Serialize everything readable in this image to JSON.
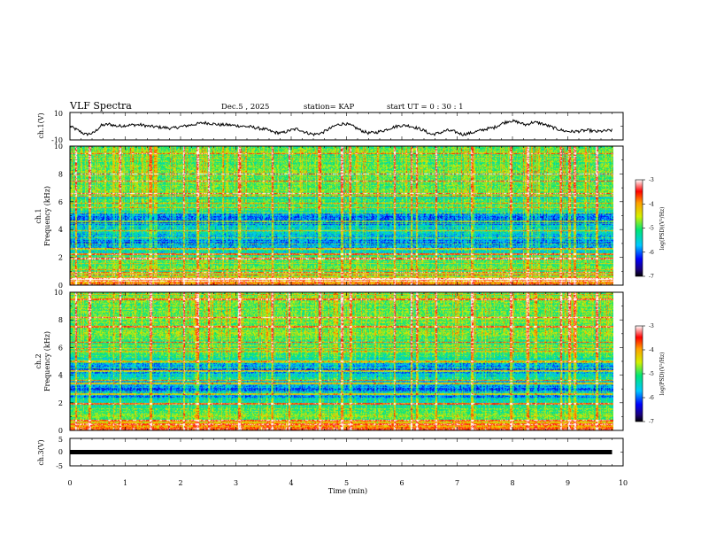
{
  "header": {
    "title": "VLF Spectra",
    "date": "Dec.5 , 2025",
    "station": "station= KAP",
    "start": "start UT = 0 : 30 : 1"
  },
  "chart_data": [
    {
      "type": "line",
      "name": "ch1-waveform",
      "ylabel": "ch.1(V)",
      "ylim": [
        -10,
        10
      ],
      "ytick_labels": [
        "10",
        "-10"
      ],
      "xlim": [
        0,
        10
      ],
      "data_xmax": 9.8,
      "values": [
        0.0,
        -3.0,
        -6.0,
        -5.0,
        0.5,
        1.5,
        0.0,
        0.5,
        1.0,
        1.0,
        0.0,
        -0.5,
        -1.0,
        -1.5,
        -0.5,
        0.5,
        1.5,
        2.5,
        2.0,
        1.0,
        1.0,
        0.5,
        0.0,
        -0.5,
        -1.5,
        -2.5,
        -4.5,
        -5.0,
        -3.0,
        -2.0,
        -4.5,
        -6.0,
        -5.0,
        -2.0,
        1.0,
        2.0,
        0.0,
        -3.0,
        -5.0,
        -4.5,
        -3.0,
        -1.0,
        0.5,
        0.5,
        -1.0,
        -3.0,
        -6.0,
        -5.0,
        -3.0,
        -4.0,
        -6.0,
        -5.0,
        -3.5,
        -2.0,
        -1.0,
        2.0,
        4.0,
        3.0,
        1.0,
        3.0,
        2.0,
        0.0,
        -2.0,
        -3.5,
        -4.0,
        -3.5,
        -3.0,
        -4.0,
        -3.5,
        -3.0
      ]
    },
    {
      "type": "heatmap",
      "name": "ch1-spectrogram",
      "ylabel": "ch.1",
      "ylabel2": "Frequency (kHz)",
      "xlim": [
        0,
        10
      ],
      "data_xmax": 9.8,
      "ylim": [
        0,
        10
      ],
      "ytick_labels": [
        "0",
        "2",
        "4",
        "6",
        "8",
        "10"
      ],
      "colorbar": {
        "label": "log(PSD)(V²/Hz)",
        "range": [
          -7,
          -3
        ],
        "tick_labels": [
          "-3",
          "-4",
          "-5",
          "-6",
          "-7"
        ]
      },
      "band_profile": [
        [
          0,
          -3.6
        ],
        [
          0.25,
          -4.0
        ],
        [
          0.6,
          -4.6
        ],
        [
          1.0,
          -4.9
        ],
        [
          1.5,
          -5.0
        ],
        [
          2.0,
          -4.9
        ],
        [
          2.3,
          -5.3
        ],
        [
          2.6,
          -5.7
        ],
        [
          3.0,
          -5.9
        ],
        [
          3.3,
          -5.9
        ],
        [
          3.5,
          -5.6
        ],
        [
          3.8,
          -5.3
        ],
        [
          4.0,
          -5.4
        ],
        [
          4.4,
          -5.9
        ],
        [
          4.9,
          -6.1
        ],
        [
          5.2,
          -5.7
        ],
        [
          5.6,
          -5.0
        ],
        [
          5.9,
          -5.1
        ],
        [
          6.3,
          -5.3
        ],
        [
          6.6,
          -4.8
        ],
        [
          7.0,
          -4.9
        ],
        [
          7.5,
          -4.9
        ],
        [
          8.0,
          -4.8
        ],
        [
          9.0,
          -4.9
        ],
        [
          10.0,
          -4.9
        ]
      ],
      "lines_khz": [
        0.4,
        0.7,
        0.9,
        1.9,
        2.2,
        2.6,
        3.4,
        3.9,
        4.6,
        6.4,
        6.6,
        7.5,
        8.0,
        9.5
      ],
      "burst_times_min": [
        0.1,
        0.35,
        0.9,
        1.45,
        2.05,
        2.3,
        2.5,
        3.05,
        3.65,
        3.95,
        4.5,
        4.9,
        5.05,
        5.85,
        6.15,
        6.25,
        6.6,
        7.25,
        7.95,
        8.25,
        8.85,
        9.0,
        9.1,
        9.5
      ]
    },
    {
      "type": "heatmap",
      "name": "ch2-spectrogram",
      "ylabel": "ch.2",
      "ylabel2": "Frequency (kHz)",
      "xlim": [
        0,
        10
      ],
      "data_xmax": 9.8,
      "ylim": [
        0,
        10
      ],
      "ytick_labels": [
        "0",
        "2",
        "4",
        "6",
        "8",
        "10"
      ],
      "colorbar": {
        "label": "log(PSD)(V²/Hz)",
        "range": [
          -7,
          -3
        ],
        "tick_labels": [
          "-3",
          "-4",
          "-5",
          "-6",
          "-7"
        ]
      },
      "band_profile": [
        [
          0,
          -3.6
        ],
        [
          0.25,
          -4.1
        ],
        [
          0.6,
          -4.7
        ],
        [
          1.0,
          -4.9
        ],
        [
          1.5,
          -5.0
        ],
        [
          2.0,
          -5.1
        ],
        [
          2.3,
          -5.6
        ],
        [
          2.6,
          -5.9
        ],
        [
          3.0,
          -6.0
        ],
        [
          3.3,
          -5.8
        ],
        [
          3.5,
          -5.4
        ],
        [
          3.8,
          -5.4
        ],
        [
          4.1,
          -5.6
        ],
        [
          4.4,
          -5.9
        ],
        [
          4.8,
          -5.8
        ],
        [
          5.1,
          -5.3
        ],
        [
          5.6,
          -5.0
        ],
        [
          6.0,
          -5.1
        ],
        [
          6.3,
          -5.0
        ],
        [
          6.6,
          -4.8
        ],
        [
          7.0,
          -4.9
        ],
        [
          7.5,
          -4.8
        ],
        [
          8.0,
          -4.8
        ],
        [
          9.0,
          -4.9
        ],
        [
          10.0,
          -4.9
        ]
      ],
      "lines_khz": [
        0.4,
        0.7,
        1.9,
        2.6,
        3.4,
        3.6,
        4.3,
        5.0,
        6.4,
        7.5,
        8.2,
        9.5
      ],
      "burst_times_min": [
        0.1,
        0.35,
        0.9,
        1.45,
        2.05,
        2.3,
        2.5,
        3.05,
        3.65,
        3.95,
        4.5,
        4.9,
        5.05,
        5.85,
        6.15,
        6.25,
        6.6,
        7.25,
        7.95,
        8.25,
        8.85,
        9.0,
        9.1,
        9.5
      ]
    },
    {
      "type": "line",
      "name": "ch3-trace",
      "ylabel": "ch.3(V)",
      "ylim": [
        -5,
        5
      ],
      "ytick_labels": [
        "5",
        "0",
        "-5"
      ],
      "xlim": [
        0,
        10
      ],
      "data_xmax": 9.8,
      "constant_value": 0,
      "xlabel": "Time (min)",
      "xtick_labels": [
        "0",
        "1",
        "2",
        "3",
        "4",
        "5",
        "6",
        "7",
        "8",
        "9",
        "10"
      ]
    }
  ]
}
